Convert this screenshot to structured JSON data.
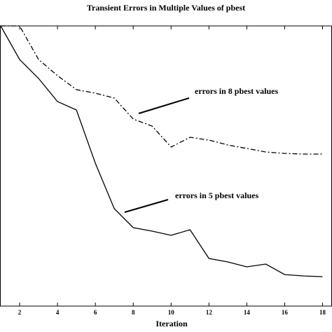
{
  "chart_data": {
    "type": "line",
    "title": "Transient Errors in Multiple Values of pbest",
    "x_label": "Iteration",
    "x": [
      1,
      2,
      3,
      4,
      5,
      6,
      7,
      8,
      9,
      10,
      11,
      12,
      13,
      14,
      15,
      16,
      17,
      18
    ],
    "series": [
      {
        "name": "errors in 5 pbest values",
        "color": "#000000",
        "style": "solid",
        "values": [
          100,
          88,
          81.25,
          73,
          70,
          51,
          34.75,
          28,
          26.75,
          25.25,
          27.25,
          17,
          15.75,
          14,
          15,
          11.25,
          10.75,
          10.5
        ]
      },
      {
        "name": "errors in 8 pbest values",
        "color": "#000000",
        "style": "dashdot",
        "values": [
          100,
          100,
          88,
          82.25,
          77.25,
          76,
          74.25,
          66.75,
          64.25,
          56.75,
          60.25,
          59.25,
          57.5,
          56.25,
          55,
          54.5,
          54.25,
          54.25
        ]
      }
    ],
    "xlim": [
      1,
      18.5
    ],
    "xticks": [
      2,
      4,
      6,
      8,
      10,
      12,
      14,
      16,
      18
    ],
    "ylim": [
      0,
      100
    ],
    "grid": false
  }
}
